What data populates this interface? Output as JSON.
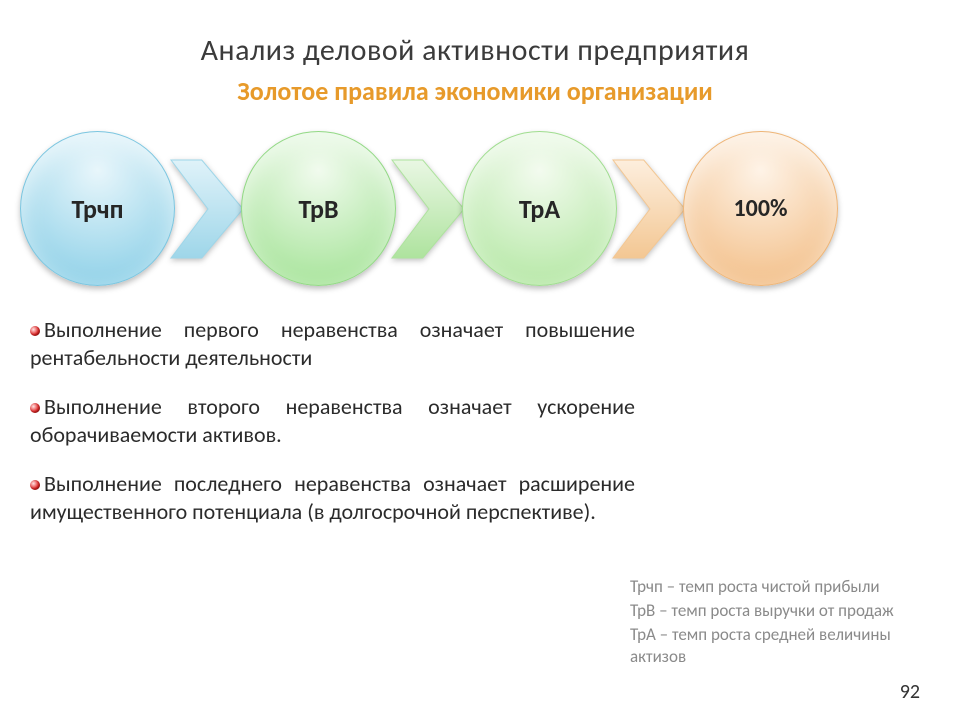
{
  "title": {
    "text": "Анализ деловой активности предприятия",
    "fontsize": 30,
    "color": "#3b3b3b"
  },
  "subtitle": {
    "text": "Золотое правила экономики организации",
    "fontsize": 26,
    "color": "#e79a2a"
  },
  "flow": {
    "circle_diameter": 155,
    "label_fontsize": 26,
    "label_color": "#262626",
    "chevron_gap": -6,
    "nodes": [
      {
        "label": "Трчп",
        "fill_top": "#e8f6fb",
        "fill_bottom": "#8fd1e8",
        "border": "#7cc6e0"
      },
      {
        "label": "ТрВ",
        "fill_top": "#f1fbee",
        "fill_bottom": "#a7e49a",
        "border": "#93d986"
      },
      {
        "label": "ТрА",
        "fill_top": "#f3fbef",
        "fill_bottom": "#b6e8a6",
        "border": "#a0dd90"
      },
      {
        "label": "100%",
        "fill_top": "#fef3e7",
        "fill_bottom": "#f3c08a",
        "border": "#eeb679",
        "label_fontsize": 24
      }
    ],
    "chevrons": [
      {
        "fill_light": "#dff2f9",
        "fill_dark": "#9ed6e9"
      },
      {
        "fill_light": "#e9f7e3",
        "fill_dark": "#aee39e"
      },
      {
        "fill_light": "#fdeedd",
        "fill_dark": "#f3c793"
      }
    ],
    "chevron_width": 78,
    "chevron_height": 110
  },
  "bullets": {
    "fontsize": 22,
    "color": "#2b2b2b",
    "items": [
      "Выполнение первого неравенства означает повышение рентабельности деятельности",
      "Выполнение второго неравенства означает ускорение оборачиваемости активов.",
      "Выполнение последнего неравенства означает расширение имущественного потенциала (в долгосрочной перспективе)."
    ]
  },
  "legend": {
    "fontsize": 17,
    "color": "#8a8a8a",
    "items": [
      {
        "abbr": "Трчп",
        "desc": " – темп роста чистой прибыли"
      },
      {
        "abbr": "ТрВ",
        "desc": " – темп роста выручки от продаж"
      },
      {
        "abbr": "ТрА",
        "desc": " – темп роста средней величины актизов"
      }
    ]
  },
  "pagenum": {
    "text": "92",
    "fontsize": 20,
    "color": "#333333"
  }
}
